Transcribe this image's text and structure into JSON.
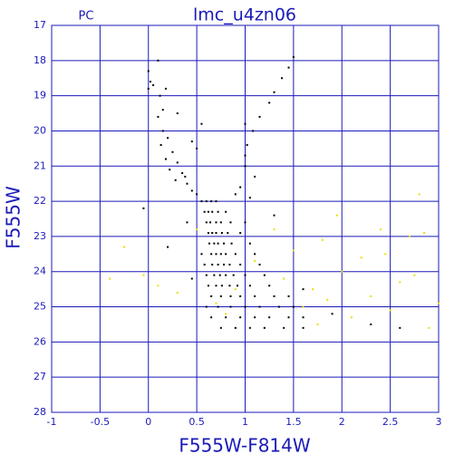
{
  "chart_data": {
    "type": "scatter",
    "title": "lmc_u4zn06",
    "corner_label": "PC",
    "x_label": "F555W-F814W",
    "y_label": "F555W",
    "xlim": [
      -1,
      3
    ],
    "ylim": [
      28,
      17
    ],
    "xticks": [
      -1,
      -0.5,
      0,
      0.5,
      1,
      1.5,
      2,
      2.5,
      3
    ],
    "yticks": [
      17,
      18,
      19,
      20,
      21,
      22,
      23,
      24,
      25,
      26,
      27,
      28
    ],
    "grid": true,
    "axis_color": "#1a1ab8",
    "series": [
      {
        "color": "#000000",
        "x": [
          0.0,
          0.02,
          0.05,
          0.0,
          0.1,
          0.12,
          0.15,
          0.18,
          0.1,
          0.15,
          0.2,
          0.13,
          0.25,
          0.18,
          0.3,
          0.22,
          0.35,
          0.28,
          0.4,
          0.45,
          0.38,
          0.5,
          0.3,
          0.45,
          0.5,
          0.55,
          1.5,
          1.45,
          1.38,
          1.3,
          1.25,
          1.15,
          1.08,
          1.02,
          1.0,
          1.0,
          1.1,
          1.0,
          0.95,
          1.05,
          0.9,
          0.55,
          0.6,
          0.65,
          0.7,
          0.58,
          0.62,
          0.66,
          0.72,
          0.8,
          0.6,
          0.64,
          0.7,
          0.75,
          0.85,
          1.0,
          0.62,
          0.66,
          0.7,
          0.76,
          0.82,
          0.95,
          0.63,
          0.68,
          0.72,
          0.78,
          0.86,
          1.05,
          0.65,
          0.7,
          0.75,
          0.8,
          0.9,
          1.1,
          0.55,
          0.66,
          0.72,
          0.78,
          0.84,
          0.95,
          1.15,
          0.58,
          0.68,
          0.74,
          0.8,
          0.88,
          1.0,
          1.2,
          0.6,
          0.7,
          0.76,
          0.84,
          0.92,
          1.05,
          1.25,
          0.62,
          0.65,
          0.75,
          0.85,
          0.95,
          1.1,
          1.3,
          1.45,
          0.6,
          0.72,
          0.85,
          1.0,
          1.15,
          1.35,
          1.5,
          0.65,
          0.8,
          0.95,
          1.1,
          1.25,
          1.45,
          1.6,
          0.75,
          0.9,
          1.05,
          1.2,
          1.4,
          1.6,
          -0.05,
          0.2,
          0.45,
          1.9,
          2.3,
          2.6,
          0.4,
          1.3,
          1.6
        ],
        "y": [
          18.3,
          18.6,
          18.7,
          18.8,
          18.0,
          19.0,
          19.4,
          18.8,
          19.6,
          20.0,
          20.2,
          20.4,
          20.6,
          20.8,
          20.9,
          21.1,
          21.2,
          21.4,
          21.5,
          21.7,
          21.3,
          21.8,
          19.5,
          20.3,
          20.5,
          19.8,
          17.9,
          18.2,
          18.5,
          18.9,
          19.2,
          19.6,
          20.0,
          20.4,
          20.7,
          21.0,
          21.3,
          19.8,
          21.6,
          21.9,
          21.8,
          22,
          22,
          22,
          22,
          22.3,
          22.3,
          22.3,
          22.3,
          22.3,
          22.6,
          22.6,
          22.6,
          22.6,
          22.6,
          22.6,
          22.9,
          22.9,
          22.9,
          22.9,
          22.9,
          22.9,
          23.2,
          23.2,
          23.2,
          23.2,
          23.2,
          23.2,
          23.5,
          23.5,
          23.5,
          23.5,
          23.5,
          23.5,
          23.5,
          23.8,
          23.8,
          23.8,
          23.8,
          23.8,
          23.8,
          23.8,
          24.1,
          24.1,
          24.1,
          24.1,
          24.1,
          24.1,
          24.1,
          24.4,
          24.4,
          24.4,
          24.4,
          24.4,
          24.4,
          24.4,
          24.7,
          24.7,
          24.7,
          24.7,
          24.7,
          24.7,
          24.7,
          25.0,
          25.0,
          25.0,
          25.0,
          25.0,
          25.0,
          25.0,
          25.3,
          25.3,
          25.3,
          25.3,
          25.3,
          25.3,
          25.3,
          25.6,
          25.6,
          25.6,
          25.6,
          25.6,
          25.6,
          22.2,
          23.3,
          24.2,
          25.2,
          25.5,
          25.6,
          22.6,
          22.4,
          24.5
        ]
      },
      {
        "color": "#e8e000",
        "x": [
          -0.4,
          -0.25,
          -0.05,
          0.1,
          0.3,
          0.5,
          0.7,
          0.9,
          1.1,
          1.3,
          1.4,
          1.5,
          1.6,
          1.7,
          1.8,
          1.85,
          1.95,
          2.0,
          2.1,
          2.2,
          2.3,
          2.4,
          2.5,
          2.6,
          2.7,
          2.75,
          2.8,
          2.9,
          3.0,
          2.85,
          1.75,
          1.2,
          0.8,
          2.45
        ],
        "y": [
          24.2,
          23.3,
          24.1,
          24.4,
          24.6,
          22.8,
          24.9,
          24.5,
          23.7,
          22.8,
          24.2,
          23.4,
          25.0,
          24.5,
          23.1,
          24.8,
          22.4,
          24.0,
          25.3,
          23.6,
          24.7,
          22.8,
          25.1,
          24.3,
          23.0,
          24.1,
          21.8,
          25.6,
          24.9,
          22.9,
          25.5,
          25.6,
          25.2,
          23.5
        ]
      }
    ]
  }
}
